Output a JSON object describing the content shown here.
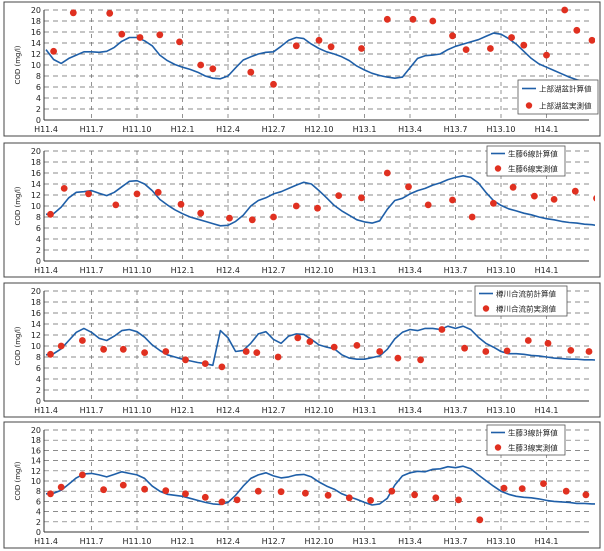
{
  "chart_data": [
    {
      "type": "line",
      "ylabel": "COD (mg/l)",
      "ylim": [
        0,
        20
      ],
      "yticks": [
        0,
        2,
        4,
        6,
        8,
        10,
        12,
        14,
        16,
        18,
        20
      ],
      "grid": true,
      "legend_position": "right",
      "x_tick_labels": [
        "H11.4",
        "H11.7",
        "H11.10",
        "H12.1",
        "H12.4",
        "H12.7",
        "H12.10",
        "H13.1",
        "H13.4",
        "H13.7",
        "H13.10",
        "H14.1"
      ],
      "series": [
        {
          "name": "上部湖盆計算値",
          "kind": "line",
          "color": "#1f5fa8",
          "x": [
            0,
            0.5,
            1,
            1.5,
            2,
            2.5,
            3,
            3.5,
            4,
            4.5,
            5,
            5.5,
            6,
            6.5,
            7,
            7.5,
            8,
            8.5,
            9,
            9.5,
            10,
            10.5,
            11,
            11.5,
            12,
            12.5,
            13,
            13.5,
            14,
            14.5,
            15,
            15.5,
            16,
            16.5,
            17,
            17.5,
            18,
            18.5,
            19,
            19.5,
            20,
            20.5,
            21,
            21.5,
            22,
            22.5,
            23,
            23.5,
            24,
            24.5,
            25,
            25.5,
            26,
            26.5,
            27,
            27.5,
            28,
            28.5,
            29,
            29.5,
            30,
            30.5,
            31,
            31.5,
            32,
            32.5,
            33,
            33.5,
            34,
            34.5,
            35,
            35.5,
            36,
            36.5,
            37
          ],
          "y": [
            12.8,
            11.0,
            10.3,
            11.2,
            11.8,
            12.4,
            12.4,
            12.3,
            12.5,
            13.2,
            14.3,
            15.0,
            15.0,
            14.4,
            13.5,
            11.8,
            10.8,
            10.1,
            9.6,
            9.2,
            8.7,
            8.0,
            7.6,
            7.5,
            8.0,
            9.5,
            10.9,
            11.5,
            12.0,
            12.3,
            12.4,
            13.4,
            14.5,
            15.0,
            14.8,
            13.8,
            13.0,
            12.4,
            12.0,
            11.5,
            10.8,
            9.8,
            9.1,
            8.5,
            8.1,
            7.8,
            7.6,
            7.8,
            9.5,
            11.2,
            11.7,
            11.8,
            12.0,
            12.8,
            13.4,
            13.8,
            14.2,
            14.6,
            15.2,
            15.8,
            15.6,
            14.8,
            13.8,
            12.5,
            11.2,
            10.2,
            9.6,
            9.0,
            8.4,
            7.8,
            7.3,
            7.0,
            6.7,
            6.4,
            6.1
          ]
        },
        {
          "name": "上部湖盆実測値",
          "kind": "scatter",
          "color": "#e03020",
          "x": [
            0.5,
            1.8,
            4.2,
            5.0,
            6.2,
            7.5,
            8.8,
            10.2,
            11.0,
            13.5,
            15.0,
            16.5,
            18.0,
            18.8,
            20.8,
            22.5,
            24.2,
            25.5,
            26.8,
            27.7,
            29.3,
            30.7,
            31.5,
            33.0,
            34.2,
            35.0,
            36.0,
            36.7,
            38.0
          ],
          "y": [
            12.5,
            19.5,
            19.4,
            15.6,
            15.0,
            15.5,
            14.2,
            10.0,
            9.3,
            8.7,
            6.5,
            13.5,
            14.5,
            13.3,
            13.0,
            18.3,
            18.3,
            18.0,
            15.3,
            12.8,
            13.0,
            15.0,
            13.6,
            11.8,
            20.0,
            16.3,
            14.5,
            15.0,
            16.0
          ]
        }
      ]
    },
    {
      "type": "line",
      "ylabel": "COD (mg/l)",
      "ylim": [
        0,
        20
      ],
      "yticks": [
        0,
        2,
        4,
        6,
        8,
        10,
        12,
        14,
        16,
        18,
        20
      ],
      "grid": true,
      "legend_position": "top-right",
      "x_tick_labels": [
        "H11.4",
        "H11.7",
        "H11.10",
        "H12.1",
        "H12.4",
        "H12.7",
        "H12.10",
        "H13.1",
        "H13.4",
        "H13.7",
        "H13.10",
        "H14.1"
      ],
      "series": [
        {
          "name": "生藤6線計算値",
          "kind": "line",
          "color": "#1f5fa8",
          "x": [
            0,
            0.5,
            1,
            1.5,
            2,
            2.5,
            3,
            3.5,
            4,
            4.5,
            5,
            5.5,
            6,
            6.5,
            7,
            7.5,
            8,
            8.5,
            9,
            9.5,
            10,
            10.5,
            11,
            11.5,
            12,
            12.5,
            13,
            13.5,
            14,
            14.5,
            15,
            15.5,
            16,
            16.5,
            17,
            17.5,
            18,
            18.5,
            19,
            19.5,
            20,
            20.5,
            21,
            21.5,
            22,
            22.5,
            23,
            23.5,
            24,
            24.5,
            25,
            25.5,
            26,
            26.5,
            27,
            27.5,
            28,
            28.5,
            29,
            29.5,
            30,
            30.5,
            31,
            31.5,
            32,
            32.5,
            33,
            33.5,
            34,
            34.5,
            35,
            35.5,
            36,
            36.5,
            37
          ],
          "y": [
            8.5,
            8.6,
            9.8,
            11.5,
            12.5,
            12.6,
            12.8,
            12.3,
            11.9,
            12.5,
            13.5,
            14.5,
            14.6,
            14.0,
            12.8,
            11.2,
            10.2,
            9.3,
            8.6,
            8.0,
            7.6,
            7.2,
            6.8,
            6.4,
            6.5,
            7.2,
            8.3,
            10.0,
            11.0,
            11.5,
            12.2,
            12.6,
            13.2,
            13.8,
            14.3,
            14.0,
            12.8,
            11.5,
            10.1,
            9.1,
            8.3,
            7.5,
            7.1,
            6.9,
            7.3,
            9.4,
            11.0,
            11.4,
            12.2,
            12.8,
            13.2,
            13.8,
            14.2,
            14.8,
            15.2,
            15.5,
            15.2,
            14.2,
            12.5,
            11.0,
            10.1,
            9.5,
            9.1,
            8.7,
            8.4,
            8.0,
            7.7,
            7.5,
            7.2,
            7.0,
            6.9,
            6.7,
            6.6,
            6.4,
            6.4
          ]
        },
        {
          "name": "生藤6線実測値",
          "kind": "scatter",
          "color": "#e03020",
          "x": [
            0.3,
            1.2,
            2.8,
            4.6,
            6.0,
            7.4,
            8.9,
            10.2,
            12.1,
            13.6,
            15.0,
            16.5,
            17.9,
            19.3,
            20.8,
            22.5,
            23.9,
            25.2,
            26.8,
            28.1,
            29.5,
            30.8,
            32.2,
            33.5,
            34.9,
            36.3,
            37.5
          ],
          "y": [
            8.5,
            13.2,
            12.2,
            10.2,
            12.2,
            12.5,
            10.3,
            8.7,
            7.8,
            7.5,
            8.0,
            10.0,
            9.6,
            11.9,
            11.5,
            16.0,
            13.5,
            10.2,
            11.1,
            8.0,
            10.5,
            13.4,
            11.8,
            11.2,
            12.7,
            11.4,
            9.2
          ]
        }
      ]
    },
    {
      "type": "line",
      "ylabel": "COD (mg/l)",
      "ylim": [
        0,
        20
      ],
      "yticks": [
        0,
        2,
        4,
        6,
        8,
        10,
        12,
        14,
        16,
        18,
        20
      ],
      "grid": true,
      "legend_position": "top-right",
      "x_tick_labels": [
        "H11.4",
        "H11.7",
        "H11.10",
        "H12.1",
        "H12.4",
        "H12.7",
        "H12.10",
        "H13.1",
        "H13.4",
        "H13.7",
        "H13.10",
        "H14.1"
      ],
      "series": [
        {
          "name": "樽川合流前計算値",
          "kind": "line",
          "color": "#1f5fa8",
          "x": [
            0,
            0.5,
            1,
            1.5,
            2,
            2.5,
            3,
            3.5,
            4,
            4.5,
            5,
            5.5,
            6,
            6.5,
            7,
            7.5,
            8,
            8.5,
            9,
            9.5,
            10,
            10.5,
            11,
            11.5,
            12,
            12.5,
            13,
            13.5,
            14,
            14.5,
            15,
            15.5,
            16,
            16.5,
            17,
            17.5,
            18,
            18.5,
            19,
            19.5,
            20,
            20.5,
            21,
            21.5,
            22,
            22.5,
            23,
            23.5,
            24,
            24.5,
            25,
            25.5,
            26,
            26.5,
            27,
            27.5,
            28,
            28.5,
            29,
            29.5,
            30,
            30.5,
            31,
            31.5,
            32,
            32.5,
            33,
            33.5,
            34,
            34.5,
            35,
            35.5,
            36,
            36.5,
            37
          ],
          "y": [
            8.4,
            8.6,
            9.5,
            11.0,
            12.5,
            13.2,
            12.5,
            11.4,
            11.0,
            11.8,
            12.8,
            13.0,
            12.6,
            11.6,
            10.2,
            9.2,
            8.4,
            8.0,
            7.6,
            7.3,
            7.0,
            6.8,
            6.5,
            12.8,
            11.5,
            9.0,
            9.2,
            10.5,
            12.2,
            12.6,
            11.2,
            10.5,
            11.8,
            12.2,
            12.1,
            11.2,
            10.2,
            9.8,
            9.5,
            8.4,
            7.8,
            7.6,
            7.6,
            7.9,
            8.2,
            9.4,
            11.3,
            12.5,
            13.0,
            12.8,
            13.2,
            13.2,
            13.0,
            13.6,
            13.2,
            13.6,
            13.0,
            11.6,
            10.5,
            9.8,
            9.0,
            8.6,
            8.6,
            8.5,
            8.3,
            8.2,
            8.0,
            7.8,
            7.7,
            7.6,
            7.6,
            7.5,
            7.5,
            7.4,
            7.4
          ]
        },
        {
          "name": "樽川合流前実測値",
          "kind": "scatter",
          "color": "#e03020",
          "x": [
            0.3,
            1.0,
            2.4,
            3.8,
            5.1,
            6.5,
            7.9,
            9.2,
            10.5,
            11.6,
            13.2,
            13.9,
            15.3,
            16.6,
            17.4,
            19.0,
            20.5,
            22.0,
            23.2,
            24.7,
            26.1,
            27.6,
            29.0,
            30.4,
            31.8,
            33.1,
            34.6,
            35.8,
            36.9
          ],
          "y": [
            8.5,
            10.0,
            11.0,
            9.4,
            9.4,
            8.8,
            9.0,
            7.5,
            6.8,
            6.2,
            9.0,
            8.8,
            8.0,
            11.5,
            10.8,
            9.8,
            10.1,
            9.0,
            7.8,
            7.5,
            13.0,
            9.6,
            9.0,
            9.1,
            11.0,
            10.5,
            9.2,
            9.0,
            8.5
          ]
        }
      ]
    },
    {
      "type": "line",
      "ylabel": "COD (mg/l)",
      "ylim": [
        0,
        20
      ],
      "yticks": [
        0,
        2,
        4,
        6,
        8,
        10,
        12,
        14,
        16,
        18,
        20
      ],
      "grid": true,
      "legend_position": "top-right",
      "x_tick_labels": [
        "H11.4",
        "H11.7",
        "H11.10",
        "H12.1",
        "H12.4",
        "H12.7",
        "H12.10",
        "H13.1",
        "H13.4",
        "H13.7",
        "H13.10",
        "H14.1"
      ],
      "series": [
        {
          "name": "生藤3線計算値",
          "kind": "line",
          "color": "#1f5fa8",
          "x": [
            0,
            0.5,
            1,
            1.5,
            2,
            2.5,
            3,
            3.5,
            4,
            4.5,
            5,
            5.5,
            6,
            6.5,
            7,
            7.5,
            8,
            8.5,
            9,
            9.5,
            10,
            10.5,
            11,
            11.5,
            12,
            12.5,
            13,
            13.5,
            14,
            14.5,
            15,
            15.5,
            16,
            16.5,
            17,
            17.5,
            18,
            18.5,
            19,
            19.5,
            20,
            20.5,
            21,
            21.5,
            22,
            22.5,
            23,
            23.5,
            24,
            24.5,
            25,
            25.5,
            26,
            26.5,
            27,
            27.5,
            28,
            28.5,
            29,
            29.5,
            30,
            30.5,
            31,
            31.5,
            32,
            32.5,
            33,
            33.5,
            34,
            34.5,
            35,
            35.5,
            36,
            36.5,
            37
          ],
          "y": [
            7.5,
            7.6,
            8.2,
            9.4,
            10.6,
            11.4,
            11.5,
            11.2,
            10.8,
            11.3,
            11.8,
            11.5,
            11.2,
            10.5,
            9.0,
            8.0,
            7.4,
            7.2,
            7.0,
            6.6,
            6.2,
            5.8,
            5.5,
            5.4,
            5.8,
            7.2,
            9.0,
            10.5,
            11.2,
            11.6,
            11.0,
            10.6,
            10.8,
            11.2,
            11.3,
            10.8,
            9.8,
            9.0,
            8.4,
            7.5,
            6.9,
            6.4,
            5.8,
            5.3,
            5.5,
            6.6,
            9.2,
            11.0,
            11.6,
            11.9,
            11.8,
            12.3,
            12.4,
            12.8,
            12.6,
            12.9,
            12.4,
            11.2,
            10.1,
            9.0,
            8.0,
            7.4,
            7.0,
            6.8,
            6.7,
            6.5,
            6.2,
            6.0,
            5.9,
            5.8,
            5.6,
            5.6,
            5.5,
            5.5,
            5.5
          ]
        },
        {
          "name": "生藤3線実測値",
          "kind": "scatter",
          "color": "#e03020",
          "x": [
            0.3,
            1.0,
            2.4,
            3.8,
            5.1,
            6.5,
            7.9,
            9.2,
            10.5,
            11.6,
            12.6,
            14.0,
            15.5,
            17.1,
            18.6,
            20.0,
            21.4,
            22.8,
            24.3,
            25.7,
            27.2,
            28.6,
            29.3,
            30.2,
            31.4,
            32.8,
            34.3,
            35.6,
            36.8
          ],
          "y": [
            7.5,
            8.8,
            11.2,
            8.3,
            9.2,
            8.4,
            8.1,
            7.5,
            6.8,
            5.9,
            6.3,
            8.0,
            7.9,
            7.6,
            7.2,
            6.7,
            6.2,
            8.0,
            7.3,
            6.7,
            6.3,
            2.4,
            20.0,
            8.6,
            8.5,
            9.5,
            8.0,
            7.3,
            6.6
          ]
        }
      ]
    }
  ]
}
